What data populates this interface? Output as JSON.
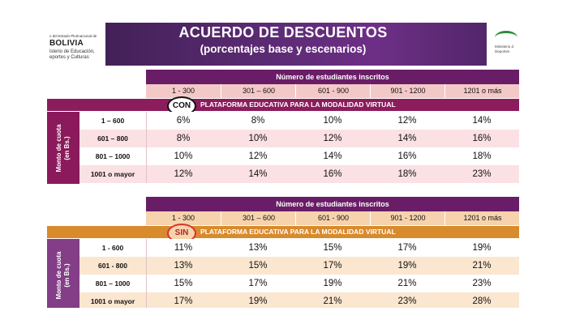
{
  "header": {
    "title": "ACUERDO DE DESCUENTOS",
    "subtitle": "(porcentajes base y escenarios)",
    "logo_left": {
      "line1": "o del Estado Plurinacional de",
      "line2": "BOLIVIA",
      "line3a": "isterio de Educación,",
      "line3b": "eportes y Culturas"
    },
    "logo_right": {
      "line1": "Ministerio d",
      "line2": "Deportes"
    }
  },
  "columns_header": "Número de estudiantes inscritos",
  "side_label": {
    "line1": "Monto de cuota",
    "line2": "(en Bs.)"
  },
  "tables": [
    {
      "badge": "CON",
      "band_text": "PLATAFORMA EDUCATIVA PARA LA MODALIDAD VIRTUAL",
      "ranges": [
        "1 - 300",
        "301 – 600",
        "601 - 900",
        "901 - 1200",
        "1201 o más"
      ],
      "rows": [
        {
          "label": "1 – 600",
          "values": [
            "6%",
            "8%",
            "10%",
            "12%",
            "14%"
          ]
        },
        {
          "label": "601 – 800",
          "values": [
            "8%",
            "10%",
            "12%",
            "14%",
            "16%"
          ]
        },
        {
          "label": "801 – 1000",
          "values": [
            "10%",
            "12%",
            "14%",
            "16%",
            "18%"
          ]
        },
        {
          "label": "1001 o mayor",
          "values": [
            "12%",
            "14%",
            "16%",
            "18%",
            "23%"
          ]
        }
      ]
    },
    {
      "badge": "SIN",
      "band_text": "PLATAFORMA EDUCATIVA PARA LA MODALIDAD VIRTUAL",
      "ranges": [
        "1 - 300",
        "301 – 600",
        "601 - 900",
        "901 - 1200",
        "1201 o más"
      ],
      "rows": [
        {
          "label": "1 - 600",
          "values": [
            "11%",
            "13%",
            "15%",
            "17%",
            "19%"
          ]
        },
        {
          "label": "601 - 800",
          "values": [
            "13%",
            "15%",
            "17%",
            "19%",
            "21%"
          ]
        },
        {
          "label": "801 – 1000",
          "values": [
            "15%",
            "17%",
            "19%",
            "21%",
            "23%"
          ]
        },
        {
          "label": "1001 o mayor",
          "values": [
            "17%",
            "19%",
            "21%",
            "23%",
            "28%"
          ]
        }
      ]
    }
  ],
  "colors": {
    "header_purple": "#6a1d67",
    "range_pink": "#f3c9c8",
    "band_con": "#8c1d5d",
    "side_con": "#8b1a5c",
    "row_light_con": "#fbe1e4",
    "band_sin": "#d98a2c",
    "side_sin": "#843d87",
    "range_sin": "#f6d3ad",
    "row_light_sin": "#fbe6d0",
    "circle_con": "#111111",
    "circle_sin": "#d8342a"
  }
}
